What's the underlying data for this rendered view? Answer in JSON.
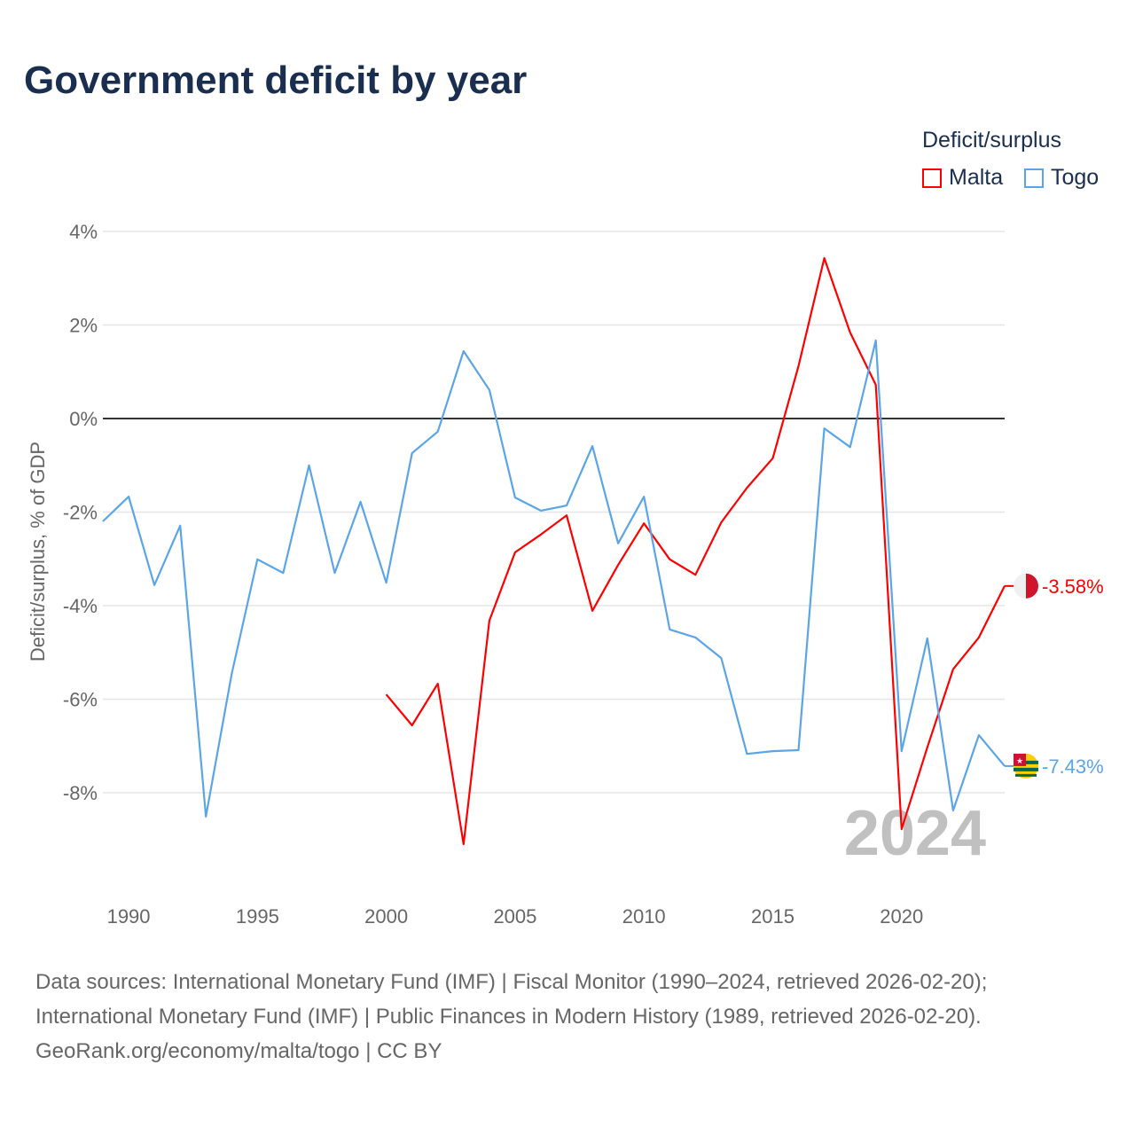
{
  "title": "Government deficit by year",
  "legend": {
    "title": "Deficit/surplus",
    "items": [
      "Malta",
      "Togo"
    ]
  },
  "footer": {
    "line1": "Data sources: International Monetary Fund (IMF) | Fiscal Monitor (1990–2024, retrieved 2026-02-20);",
    "line2": "International Monetary Fund (IMF) | Public Finances in Modern History (1989, retrieved 2026-02-20).",
    "line3": "GeoRank.org/economy/malta/togo | CC BY"
  },
  "chart_data": {
    "type": "line",
    "title": "Government deficit by year",
    "ylabel": "Deficit/surplus, % of GDP",
    "xlabel": "",
    "year_label": "2024",
    "xlim": [
      1989,
      2024
    ],
    "ylim": [
      -10,
      4
    ],
    "xticks": [
      1990,
      1995,
      2000,
      2005,
      2010,
      2015,
      2020
    ],
    "yticks": [
      4,
      2,
      0,
      -2,
      -4,
      -6,
      -8
    ],
    "ytick_labels": [
      "4%",
      "2%",
      "0%",
      "-2%",
      "-4%",
      "-6%",
      "-8%"
    ],
    "series": [
      {
        "name": "Malta",
        "color": "#ff0000",
        "end_label": "-3.58%",
        "x": [
          2000,
          2001,
          2002,
          2003,
          2004,
          2005,
          2006,
          2007,
          2008,
          2009,
          2010,
          2011,
          2012,
          2013,
          2014,
          2015,
          2016,
          2017,
          2018,
          2019,
          2020,
          2021,
          2022,
          2023,
          2024
        ],
        "values": [
          -5.9,
          -6.56,
          -5.67,
          -9.1,
          -4.32,
          -2.86,
          -2.48,
          -2.07,
          -4.11,
          -3.13,
          -2.24,
          -3.01,
          -3.34,
          -2.22,
          -1.48,
          -0.85,
          1.12,
          3.43,
          1.84,
          0.72,
          -8.78,
          -7.03,
          -5.36,
          -4.68,
          -3.58
        ]
      },
      {
        "name": "Togo",
        "color": "#5aa5e8",
        "end_label": "-7.43%",
        "x": [
          1989,
          1990,
          1991,
          1992,
          1993,
          1994,
          1995,
          1996,
          1997,
          1998,
          1999,
          2000,
          2001,
          2002,
          2003,
          2004,
          2005,
          2006,
          2007,
          2008,
          2009,
          2010,
          2011,
          2012,
          2013,
          2014,
          2015,
          2016,
          2017,
          2018,
          2019,
          2020,
          2021,
          2022,
          2023,
          2024
        ],
        "values": [
          -2.2,
          -1.67,
          -3.56,
          -2.29,
          -8.51,
          -5.46,
          -3.01,
          -3.3,
          -1.0,
          -3.3,
          -1.78,
          -3.51,
          -0.74,
          -0.28,
          1.44,
          0.61,
          -1.69,
          -1.97,
          -1.86,
          -0.59,
          -2.67,
          -1.67,
          -4.51,
          -4.68,
          -5.12,
          -7.17,
          -7.11,
          -7.09,
          -0.21,
          -0.61,
          1.67,
          -7.11,
          -4.7,
          -8.38,
          -6.77,
          -7.43
        ]
      }
    ]
  }
}
